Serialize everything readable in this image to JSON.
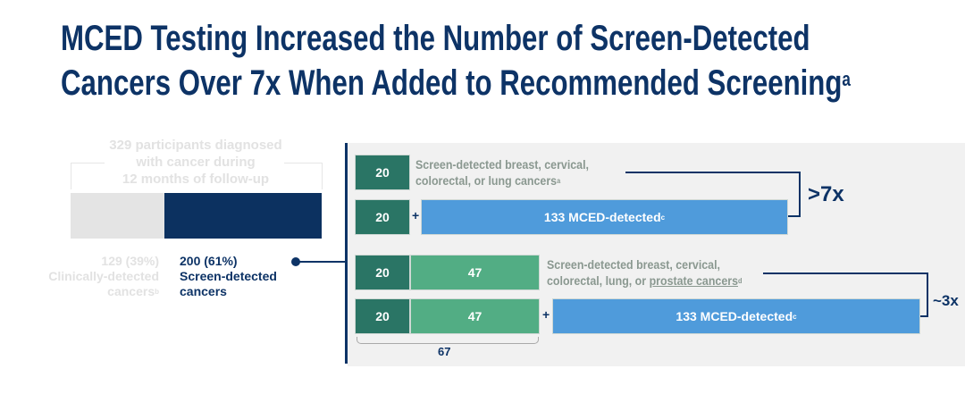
{
  "title": {
    "line1": "MCED Testing Increased the Number of Screen-Detected",
    "line2": "Cancers Over 7x When Added to Recommended Screening",
    "sup": "a"
  },
  "left": {
    "header": [
      "329 participants diagnosed",
      "with cancer during",
      "12 months of follow-up"
    ],
    "clinical": {
      "count": "129 (39%)",
      "label1": "Clinically-detected",
      "label2": "cancers",
      "sup": "b",
      "value": 129,
      "percent": 39
    },
    "screen": {
      "count": "200 (61%)",
      "label1": "Screen-detected",
      "label2": "cancers",
      "value": 200,
      "percent": 61
    }
  },
  "right": {
    "row1": {
      "box": "20",
      "note1": "Screen-detected breast, cervical,",
      "note2": "colorectal, or lung cancers",
      "sup": "a"
    },
    "row2": {
      "box": "20",
      "plus": "+",
      "mced": "133 MCED-detected",
      "sup": "c"
    },
    "multiplier1": ">7x",
    "row3": {
      "box": "20",
      "box2": "47",
      "note1": "Screen-detected breast, cervical,",
      "note2a": "colorectal, lung, or ",
      "note2b": "prostate cancers",
      "sup": "d"
    },
    "row4": {
      "box": "20",
      "box2": "47",
      "plus": "+",
      "mced": "133 MCED-detected",
      "sup": "c"
    },
    "multiplier2": "~3x",
    "total": "67"
  },
  "colors": {
    "navy": "#0d3366",
    "dark_green": "#2a7565",
    "light_green": "#52ad84",
    "blue": "#4f9bdb"
  }
}
